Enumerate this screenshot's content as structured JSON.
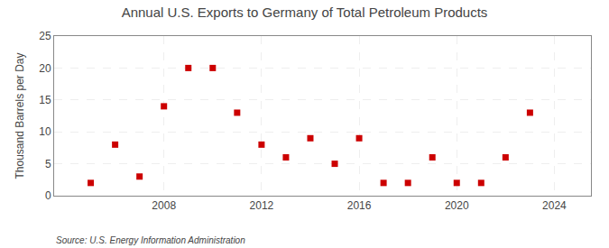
{
  "chart_data": {
    "type": "scatter",
    "title": "Annual U.S. Exports to Germany of Total Petroleum Products",
    "ylabel": "Thousand Barrels per Day",
    "annotations": [
      "Source: U.S. Energy Information Administration"
    ],
    "x": [
      2005,
      2006,
      2007,
      2008,
      2009,
      2010,
      2011,
      2012,
      2013,
      2014,
      2015,
      2016,
      2017,
      2018,
      2019,
      2020,
      2021,
      2022,
      2023,
      2024
    ],
    "values": [
      2,
      8,
      3,
      14,
      20,
      20,
      13,
      8,
      6,
      9,
      5,
      9,
      2,
      2,
      6,
      2,
      2,
      6,
      13,
      null
    ],
    "color": "#cc0000",
    "marker": "square",
    "xlim": [
      2003.5,
      2025.5
    ],
    "xticks": [
      2008,
      2012,
      2016,
      2020,
      2024
    ],
    "ylim": [
      0,
      25
    ],
    "yticks": [
      0,
      5,
      10,
      15,
      20,
      25
    ],
    "grid": true
  }
}
